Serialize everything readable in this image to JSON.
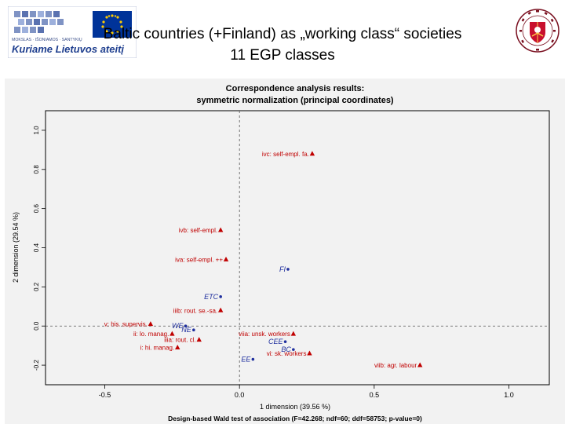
{
  "slide": {
    "title_line1": "Baltic countries (+Finland) as „working class“ societies",
    "title_line2": "11 EGP classes",
    "logo_left_text_top": "MOKSLAS · IŠONIAMOS · SANTYKIŲ",
    "logo_left_text_bottom": "Kuriame Lietuvos ateitį"
  },
  "colors": {
    "class_points": "#c00000",
    "country_points": "#1f2f9e",
    "logo_blue": "#1f3f8f",
    "eu_flag": "#003399",
    "eu_stars": "#ffcc00"
  },
  "chart_data": {
    "type": "scatter",
    "title": "Correspondence analysis results:",
    "subtitle": "symmetric normalization (principal coordinates)",
    "xlabel": "1 dimension (39.56 %)",
    "ylabel": "2 dimension (29.54 %)",
    "footnote": "Design-based Wald test of association (F=42.268; ndf=60; ddf=58753; p-value=0)",
    "xlim": [
      -0.72,
      1.15
    ],
    "ylim": [
      -0.3,
      1.1
    ],
    "x_ticks": [
      -0.5,
      0.0,
      0.5,
      1.0
    ],
    "x_tick_labels": [
      "-0.5",
      "0.0",
      "0.5",
      "1.0"
    ],
    "y_ticks": [
      -0.2,
      0.0,
      0.2,
      0.4,
      0.6,
      0.8,
      1.0
    ],
    "y_tick_labels": [
      "-0.2",
      "0.0",
      "0.2",
      "0.4",
      "0.6",
      "0.8",
      "1.0"
    ],
    "reference_lines": {
      "x": 0,
      "y": 0,
      "style": "dashed"
    },
    "series": [
      {
        "group": "classes",
        "marker": "triangle",
        "points": [
          {
            "label": "ivc: self-empl. fa.",
            "x": 0.27,
            "y": 0.88
          },
          {
            "label": "ivb: self-empl.",
            "x": -0.07,
            "y": 0.49
          },
          {
            "label": "iva: self-empl. ++",
            "x": -0.05,
            "y": 0.34
          },
          {
            "label": "iiib: rout. se.-sa.",
            "x": -0.07,
            "y": 0.08
          },
          {
            "label": "v: his. supervis.",
            "x": -0.33,
            "y": 0.01
          },
          {
            "label": "ii: lo. manag.",
            "x": -0.25,
            "y": -0.04
          },
          {
            "label": "iiia: rout. cl.",
            "x": -0.15,
            "y": -0.07
          },
          {
            "label": "i: hi. manag.",
            "x": -0.23,
            "y": -0.11
          },
          {
            "label": "viia: unsk. workers",
            "x": 0.2,
            "y": -0.04
          },
          {
            "label": "vi: sk. workers",
            "x": 0.26,
            "y": -0.14
          },
          {
            "label": "viib: agr. labour",
            "x": 0.67,
            "y": -0.2
          }
        ]
      },
      {
        "group": "countries",
        "marker": "dot",
        "points": [
          {
            "label": "FI",
            "x": 0.18,
            "y": 0.29
          },
          {
            "label": "ETC",
            "x": -0.07,
            "y": 0.15
          },
          {
            "label": "WE",
            "x": -0.2,
            "y": 0.0
          },
          {
            "label": "NE",
            "x": -0.17,
            "y": -0.02
          },
          {
            "label": "CEE",
            "x": 0.17,
            "y": -0.08
          },
          {
            "label": "BC",
            "x": 0.2,
            "y": -0.12
          },
          {
            "label": "EE",
            "x": 0.05,
            "y": -0.17
          }
        ]
      }
    ]
  }
}
